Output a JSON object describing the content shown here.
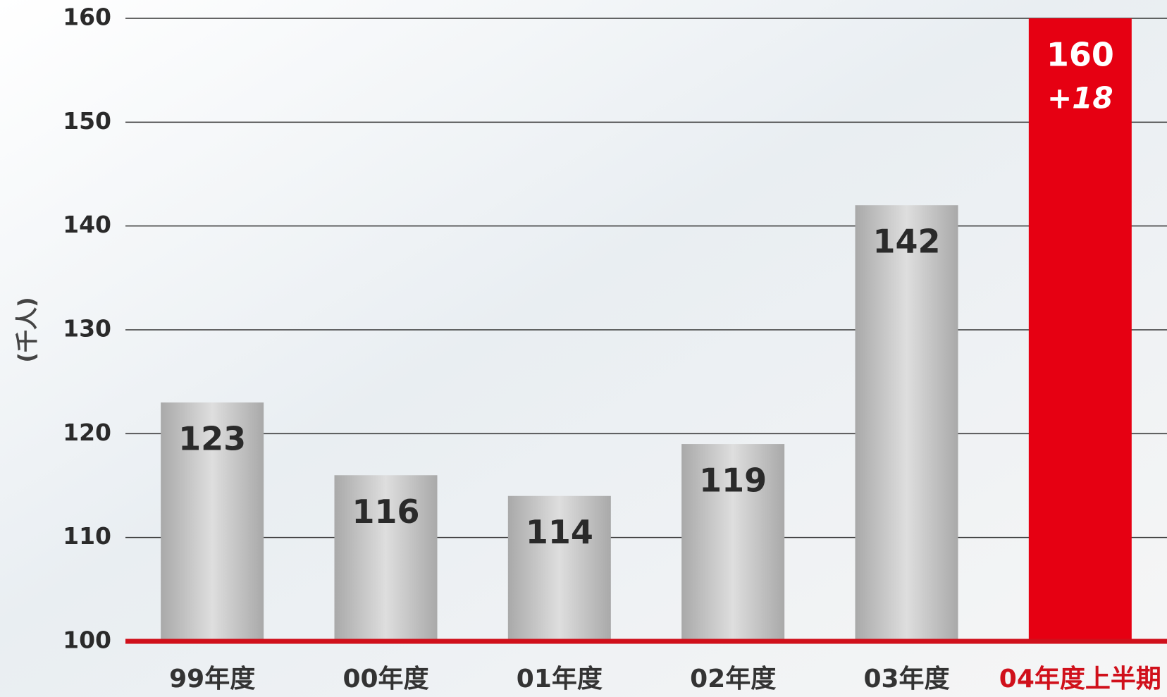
{
  "chart_data": {
    "type": "bar",
    "y_label": "(千人)",
    "categories": [
      "99年度",
      "00年度",
      "01年度",
      "02年度",
      "03年度",
      "04年度上半期"
    ],
    "values": [
      123,
      116,
      114,
      119,
      142,
      160
    ],
    "colors": [
      "#c4c4c4",
      "#c4c4c4",
      "#c4c4c4",
      "#c4c4c4",
      "#c4c4c4",
      "#e60012"
    ],
    "category_colors": [
      "#333333",
      "#333333",
      "#333333",
      "#333333",
      "#333333",
      "#d0101b"
    ],
    "value_label_colors": [
      "#2a2a2a",
      "#2a2a2a",
      "#2a2a2a",
      "#2a2a2a",
      "#2a2a2a",
      "#ffffff"
    ],
    "annotations": [
      {
        "category": "04年度上半期",
        "text": "+18"
      }
    ],
    "baseline_color": "#d0101b",
    "ylim": [
      100,
      160
    ],
    "yticks": [
      100,
      110,
      120,
      130,
      140,
      150,
      160
    ],
    "grid": true
  }
}
